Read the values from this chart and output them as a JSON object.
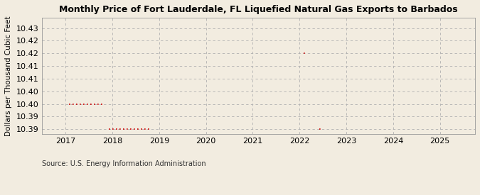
{
  "title": "Monthly Price of Fort Lauderdale, FL Liquefied Natural Gas Exports to Barbados",
  "ylabel": "Dollars per Thousand Cubic Feet",
  "source": "Source: U.S. Energy Information Administration",
  "background_color": "#f2ece0",
  "line_color": "#cc0000",
  "xlim_left": 2016.5,
  "xlim_right": 2025.75,
  "ylim_bottom": 10.388,
  "ylim_top": 10.434,
  "xticks": [
    2017,
    2018,
    2019,
    2020,
    2021,
    2022,
    2023,
    2024,
    2025
  ],
  "ytick_vals": [
    10.39,
    10.395,
    10.4,
    10.405,
    10.41,
    10.415,
    10.42,
    10.425,
    10.43
  ],
  "ytick_labels": [
    "10.39",
    "10.39",
    "10.40",
    "10.40",
    "10.41",
    "10.41",
    "10.42",
    "10.42",
    "10.43"
  ],
  "data_segments": [
    {
      "x_start": 2017.08,
      "x_end": 2017.83,
      "y": 10.4
    },
    {
      "x_start": 2017.92,
      "x_end": 2018.83,
      "y": 10.39
    },
    {
      "x_start": 2022.08,
      "x_end": 2022.17,
      "y": 10.42
    },
    {
      "x_start": 2022.42,
      "x_end": 2022.5,
      "y": 10.39
    }
  ]
}
